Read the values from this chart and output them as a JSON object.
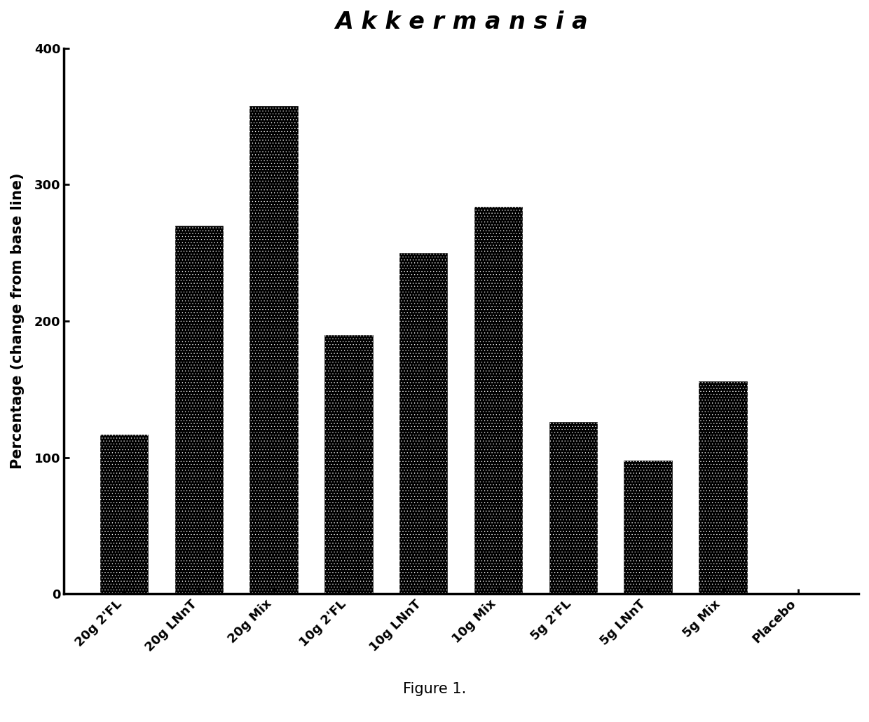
{
  "categories": [
    "20g 2'FL",
    "20g LNnT",
    "20g Mix",
    "10g 2'FL",
    "10g LNnT",
    "10g Mix",
    "5g 2'FL",
    "5g LNnT",
    "5g Mix",
    "Placebo"
  ],
  "values": [
    117,
    270,
    358,
    190,
    250,
    284,
    126,
    98,
    156,
    0
  ],
  "title": "A k k e r m a n s i a",
  "ylabel": "Percentage (change from base line)",
  "ylim": [
    0,
    400
  ],
  "yticks": [
    0,
    100,
    200,
    300,
    400
  ],
  "bar_color": "#000000",
  "hatch_color": "#ffffff",
  "background_color": "#ffffff",
  "figure_label": "Figure 1.",
  "title_fontsize": 24,
  "ylabel_fontsize": 15,
  "tick_fontsize": 13,
  "label_fontsize": 15,
  "bar_width": 0.65
}
